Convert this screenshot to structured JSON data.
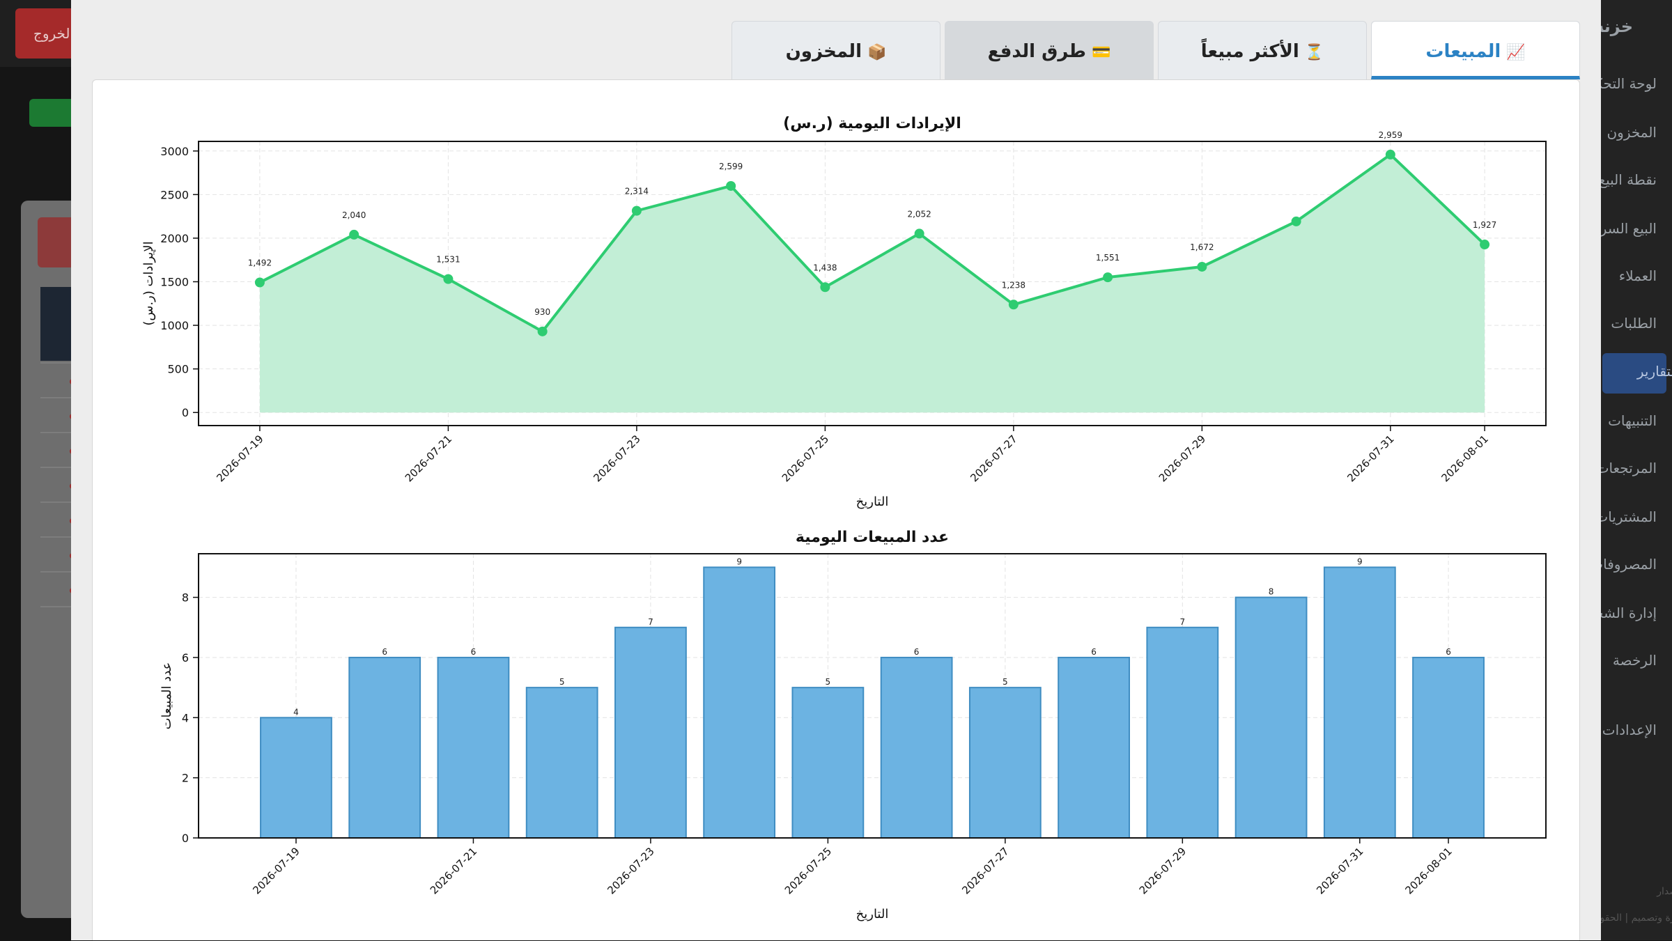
{
  "background": {
    "logout_label": "الخروج",
    "sidebar_title": "خزنة",
    "sidebar_items": [
      "لوحة التحكم",
      "المخزون",
      "نقطة البيع",
      "البيع السريع",
      "العملاء",
      "الطلبات",
      "التقارير",
      "التنبيهات",
      "المرتجعات",
      "المشتريات",
      "المصروفات",
      "إدارة الشحن",
      "الرخصة",
      "الإعدادات"
    ],
    "active_item": "التقارير",
    "footer_version": "الإصدار",
    "footer_credit": "فكرة وتصميم | الحقوق"
  },
  "tabs": [
    {
      "label": "المبيعات",
      "icon": "📈",
      "icon_name": "chart-increasing-icon",
      "state": "active"
    },
    {
      "label": "الأكثر مبيعاً",
      "icon": "⏳",
      "icon_name": "hourglass-icon",
      "state": "normal"
    },
    {
      "label": "طرق الدفع",
      "icon": "💳",
      "icon_name": "credit-card-icon",
      "state": "hover"
    },
    {
      "label": "المخزون",
      "icon": "📦",
      "icon_name": "package-icon",
      "state": "normal"
    }
  ],
  "chart_data": [
    {
      "type": "area",
      "title": "الإيرادات اليومية (ر.س)",
      "xlabel": "التاريخ",
      "ylabel": "الإيرادات (ر.س)",
      "x": [
        "2026-07-19",
        "2026-07-20",
        "2026-07-21",
        "2026-07-22",
        "2026-07-23",
        "2026-07-24",
        "2026-07-25",
        "2026-07-26",
        "2026-07-27",
        "2026-07-28",
        "2026-07-29",
        "2026-07-30",
        "2026-07-31",
        "2026-08-01"
      ],
      "values": [
        1492,
        2040,
        1531,
        930,
        2314,
        2599,
        1438,
        2052,
        1238,
        1551,
        1672,
        2192,
        2959,
        1927
      ],
      "value_labels": [
        "1,492",
        "2,040",
        "1,531",
        "930",
        "2,314",
        "2,599",
        "1,438",
        "2,052",
        "1,238",
        "1,551",
        "1,672",
        "",
        "2,959",
        "1,927"
      ],
      "xticks": [
        "2026-07-19",
        "2026-07-21",
        "2026-07-23",
        "2026-07-25",
        "2026-07-27",
        "2026-07-29",
        "2026-07-31",
        "2026-08-01"
      ],
      "yticks": [
        "0",
        "500",
        "1000",
        "1500",
        "2000",
        "2500",
        "3000"
      ],
      "ylim": [
        -150,
        3110
      ],
      "grid": true,
      "line_color": "#2ecc71",
      "fill_color": "#c2eed6"
    },
    {
      "type": "bar",
      "title": "عدد المبيعات اليومية",
      "xlabel": "التاريخ",
      "ylabel": "عدد المبيعات",
      "x": [
        "2026-07-19",
        "2026-07-20",
        "2026-07-21",
        "2026-07-22",
        "2026-07-23",
        "2026-07-24",
        "2026-07-25",
        "2026-07-26",
        "2026-07-27",
        "2026-07-28",
        "2026-07-29",
        "2026-07-30",
        "2026-07-31",
        "2026-08-01"
      ],
      "values": [
        4,
        6,
        6,
        5,
        7,
        9,
        5,
        6,
        5,
        6,
        7,
        8,
        9,
        6
      ],
      "value_labels": [
        "4",
        "6",
        "6",
        "5",
        "7",
        "9",
        "5",
        "6",
        "5",
        "6",
        "7",
        "8",
        "9",
        "6"
      ],
      "xticks": [
        "2026-07-19",
        "2026-07-21",
        "2026-07-23",
        "2026-07-25",
        "2026-07-27",
        "2026-07-29",
        "2026-07-31",
        "2026-08-01"
      ],
      "yticks": [
        "0",
        "2",
        "4",
        "6",
        "8"
      ],
      "ylim": [
        0,
        9.45
      ],
      "grid": true,
      "bar_color": "#6cb3e2",
      "bar_edge": "#3f8dc2"
    }
  ]
}
